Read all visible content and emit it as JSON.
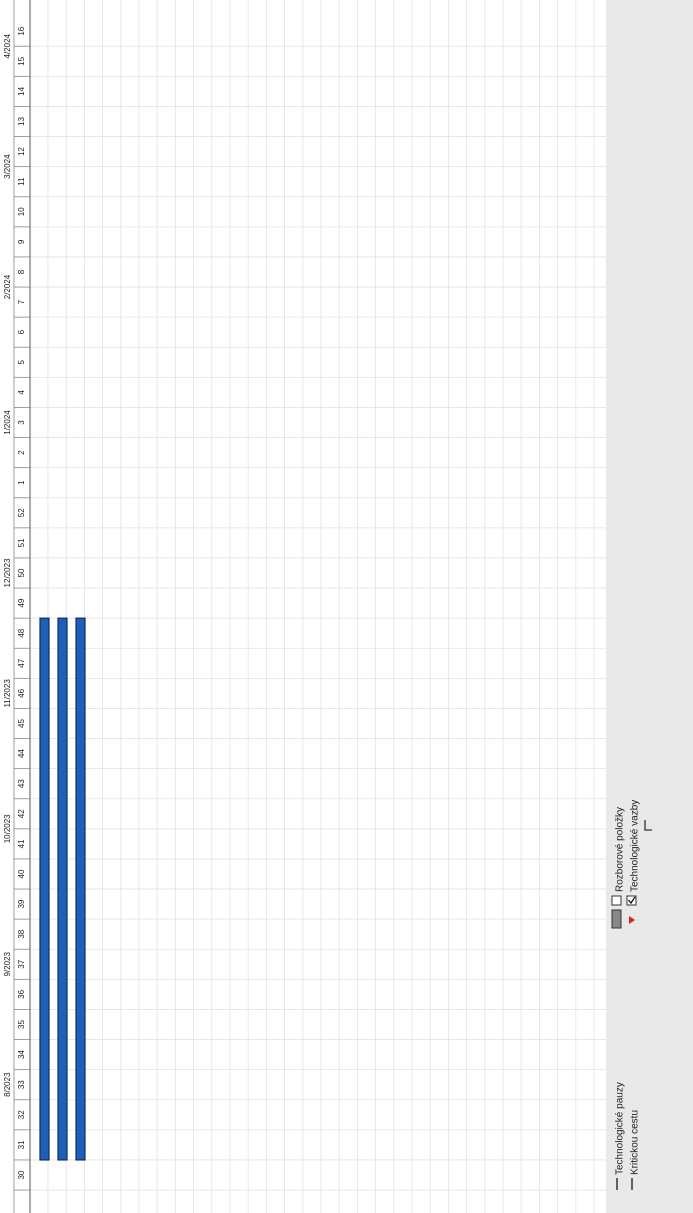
{
  "header": {
    "months": [
      "8/2023",
      "9/2023",
      "10/2023",
      "11/2023",
      "12/2023",
      "1/2024",
      "2/2024",
      "3/2024",
      "4/2024"
    ],
    "weeks": [
      30,
      31,
      32,
      33,
      34,
      35,
      36,
      37,
      38,
      39,
      40,
      41,
      42,
      43,
      44,
      45,
      46,
      47,
      48,
      49,
      50,
      51,
      52,
      1,
      2,
      3,
      4,
      5,
      6,
      7,
      8,
      9,
      10,
      11,
      12,
      13,
      14,
      15,
      16
    ]
  },
  "tasks": [
    {
      "start": 31,
      "end": 48
    },
    {
      "start": 31,
      "end": 48
    },
    {
      "start": 31,
      "end": 48
    }
  ],
  "legend": {
    "items": [
      "Technologické pauzy",
      "Kritickou cestu",
      "Rozborové položky",
      "Technologické vazby"
    ]
  }
}
